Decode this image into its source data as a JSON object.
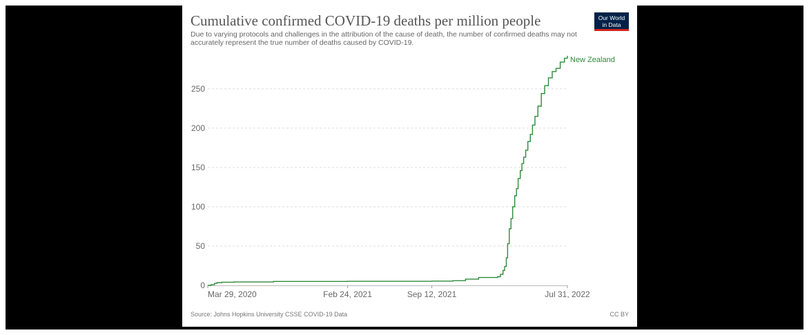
{
  "header": {
    "title": "Cumulative confirmed COVID-19 deaths per million people",
    "subtitle": "Due to varying protocols and challenges in the attribution of the cause of death, the number of confirmed deaths may not accurately represent the true number of deaths caused by COVID-19.",
    "logo_line1": "Our World",
    "logo_line2": "in Data"
  },
  "footer": {
    "source": "Source: Johns Hopkins University CSSE COVID-19 Data",
    "license": "CC BY"
  },
  "colors": {
    "series": "#2e8b3a",
    "grid": "#dddddd",
    "background": "#000000"
  },
  "chart_data": {
    "type": "line",
    "title": "Cumulative confirmed COVID-19 deaths per million people",
    "xlabel": "",
    "ylabel": "",
    "x_ticks": [
      "Mar 29, 2020",
      "Feb 24, 2021",
      "Sep 12, 2021",
      "Jul 31, 2022"
    ],
    "y_ticks": [
      0,
      50,
      100,
      150,
      200,
      250
    ],
    "ylim": [
      0,
      292
    ],
    "xlim": [
      "2020-03-29",
      "2022-07-31"
    ],
    "grid": "horizontal dashed",
    "series": [
      {
        "name": "New Zealand",
        "step": true,
        "points": [
          [
            "2020-03-29",
            0
          ],
          [
            "2020-04-06",
            1
          ],
          [
            "2020-04-14",
            2.5
          ],
          [
            "2020-04-20",
            3.5
          ],
          [
            "2020-05-01",
            4
          ],
          [
            "2020-05-30",
            4.3
          ],
          [
            "2020-09-01",
            5
          ],
          [
            "2021-02-24",
            5.2
          ],
          [
            "2021-09-12",
            5.4
          ],
          [
            "2021-11-01",
            6
          ],
          [
            "2021-12-01",
            8
          ],
          [
            "2022-01-01",
            10
          ],
          [
            "2022-02-15",
            11
          ],
          [
            "2022-02-22",
            14
          ],
          [
            "2022-02-28",
            19
          ],
          [
            "2022-03-04",
            24
          ],
          [
            "2022-03-08",
            35
          ],
          [
            "2022-03-11",
            53
          ],
          [
            "2022-03-15",
            72
          ],
          [
            "2022-03-19",
            85
          ],
          [
            "2022-03-23",
            100
          ],
          [
            "2022-03-28",
            114
          ],
          [
            "2022-04-01",
            123
          ],
          [
            "2022-04-05",
            136
          ],
          [
            "2022-04-10",
            146
          ],
          [
            "2022-04-14",
            155
          ],
          [
            "2022-04-18",
            163
          ],
          [
            "2022-04-23",
            172
          ],
          [
            "2022-04-28",
            183
          ],
          [
            "2022-05-04",
            192
          ],
          [
            "2022-05-09",
            204
          ],
          [
            "2022-05-15",
            215
          ],
          [
            "2022-05-22",
            228
          ],
          [
            "2022-05-30",
            244
          ],
          [
            "2022-06-07",
            254
          ],
          [
            "2022-06-16",
            264
          ],
          [
            "2022-06-25",
            272
          ],
          [
            "2022-07-04",
            276
          ],
          [
            "2022-07-14",
            284
          ],
          [
            "2022-07-24",
            289
          ],
          [
            "2022-07-31",
            292
          ]
        ]
      }
    ]
  }
}
